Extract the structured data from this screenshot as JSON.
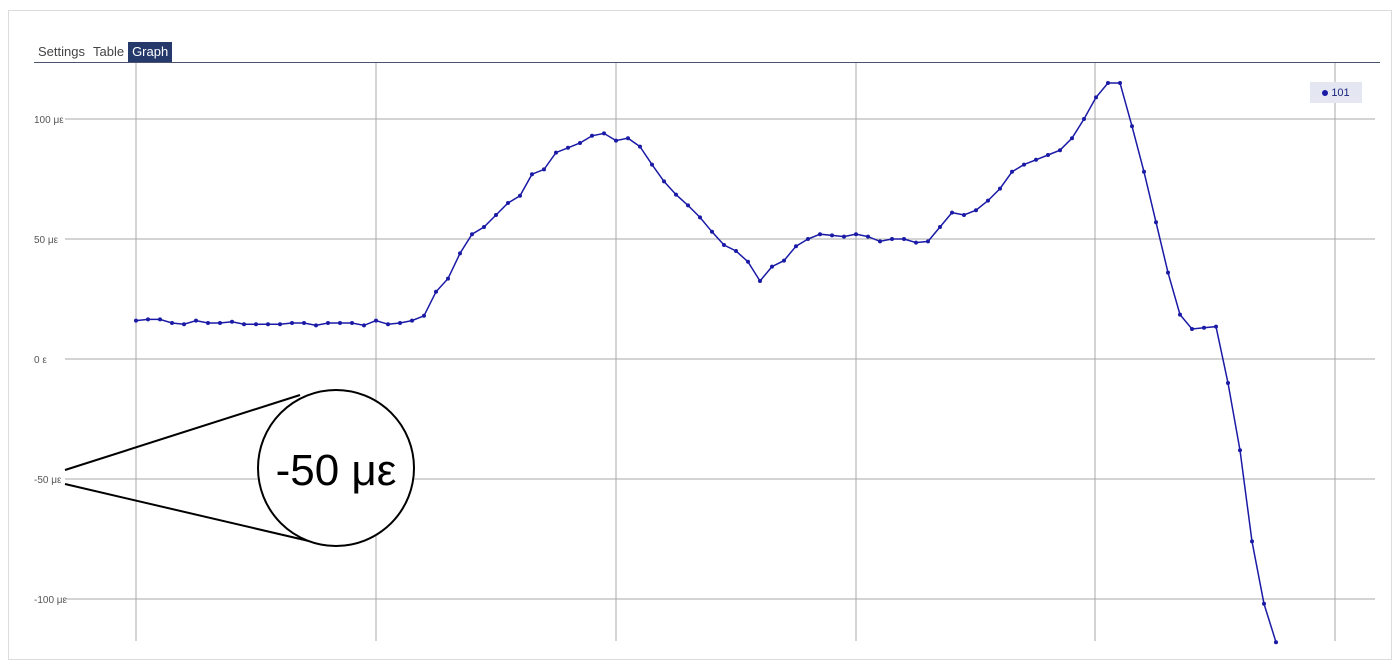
{
  "tabs": [
    {
      "label": "Settings",
      "active": false
    },
    {
      "label": "Table",
      "active": false
    },
    {
      "label": "Graph",
      "active": true
    }
  ],
  "colors": {
    "line": "#1a1aa6",
    "grid": "#a8a8a8",
    "active_tab": "#25396b",
    "legend_bg": "#e4e7f2"
  },
  "magnifier": {
    "label": "-50 με"
  },
  "chart_data": {
    "type": "line",
    "title": "",
    "xlabel": "",
    "ylabel": "",
    "ylim": [
      -118,
      122
    ],
    "grid": true,
    "legend_position": "top-right",
    "y_ticks": [
      {
        "value": 100,
        "label": "100 με"
      },
      {
        "value": 50,
        "label": "50 με"
      },
      {
        "value": 0,
        "label": "0 ε"
      },
      {
        "value": -50,
        "label": "-50 με"
      },
      {
        "value": -100,
        "label": "-100 με"
      }
    ],
    "series": [
      {
        "name": "101",
        "values": [
          16,
          16.5,
          16.5,
          15,
          14.5,
          16,
          15,
          15,
          15.5,
          14.5,
          14.5,
          14.5,
          14.5,
          15,
          15,
          14,
          15,
          15,
          15,
          14,
          16,
          14.5,
          15,
          16,
          18,
          28,
          33.5,
          44,
          52,
          55,
          60,
          65,
          68,
          77,
          79,
          86,
          88,
          90,
          93,
          94,
          91,
          92,
          88.5,
          81,
          74,
          68.5,
          64,
          59,
          53,
          47.5,
          45,
          40.5,
          32.5,
          38.5,
          41,
          47,
          50,
          52,
          51.5,
          51,
          52,
          51,
          49,
          50,
          50,
          48.5,
          49,
          55,
          61,
          60,
          62,
          66,
          71,
          78,
          81,
          83,
          85,
          87,
          92,
          100,
          109,
          115,
          115,
          97,
          78,
          57,
          36,
          18.5,
          12.5,
          13,
          13.5,
          -10,
          -38,
          -76,
          -102,
          -118
        ]
      }
    ]
  }
}
